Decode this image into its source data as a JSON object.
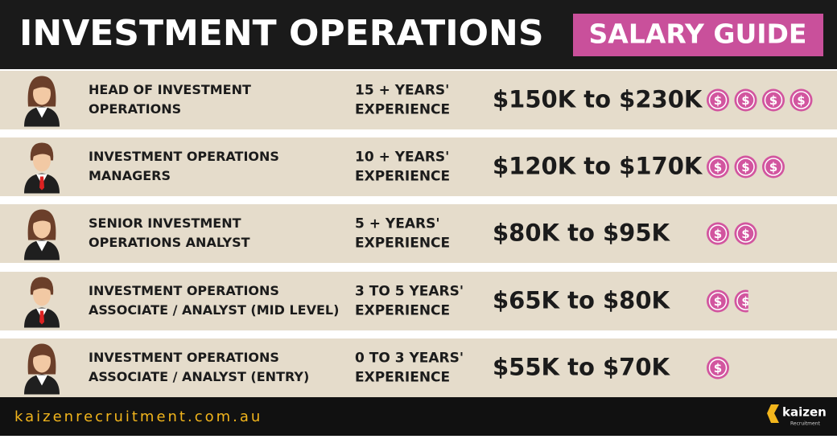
{
  "header": {
    "title": "INVESTMENT OPERATIONS",
    "badge": "SALARY GUIDE"
  },
  "rows": [
    {
      "role": [
        "HEAD OF INVESTMENT",
        "OPERATIONS"
      ],
      "experience": [
        "15 + YEARS'",
        "EXPERIENCE"
      ],
      "salary": "$150K to $230K",
      "coins": 4,
      "avatar": "female"
    },
    {
      "role": [
        "INVESTMENT OPERATIONS",
        "MANAGERS"
      ],
      "experience": [
        "10 + YEARS'",
        "EXPERIENCE"
      ],
      "salary": "$120K to $170K",
      "coins": 3,
      "avatar": "male"
    },
    {
      "role": [
        "SENIOR INVESTMENT",
        "OPERATIONS ANALYST"
      ],
      "experience": [
        "5 + YEARS'",
        "EXPERIENCE"
      ],
      "salary": "$80K to $95K",
      "coins": 2,
      "avatar": "female"
    },
    {
      "role": [
        "INVESTMENT OPERATIONS",
        "ASSOCIATE / ANALYST (MID LEVEL)"
      ],
      "experience": [
        "3 TO 5 YEARS'",
        "EXPERIENCE"
      ],
      "salary": "$65K to $80K",
      "coins": 1.5,
      "avatar": "male"
    },
    {
      "role": [
        "INVESTMENT OPERATIONS",
        "ASSOCIATE / ANALYST (ENTRY)"
      ],
      "experience": [
        "0 TO 3 YEARS'",
        "EXPERIENCE"
      ],
      "salary": "$55K to $70K",
      "coins": 1,
      "avatar": "female"
    }
  ],
  "coin_symbol": "$",
  "footer": {
    "website": "kaizenrecruitment.com.au",
    "logo": "kaizen",
    "logo_sub": "Recruitment"
  }
}
